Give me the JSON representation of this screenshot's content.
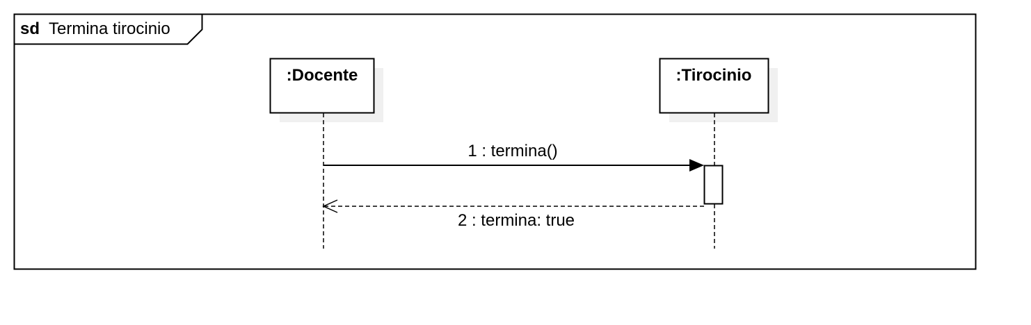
{
  "frame": {
    "keyword": "sd",
    "name": "Termina tirocinio"
  },
  "lifelines": [
    {
      "label": ":Docente"
    },
    {
      "label": ":Tirocinio"
    }
  ],
  "messages": [
    {
      "label": "1 : termina()",
      "type": "synchronous call",
      "from": ":Docente",
      "to": ":Tirocinio"
    },
    {
      "label": "2 : termina: true",
      "type": "return",
      "from": ":Tirocinio",
      "to": ":Docente"
    }
  ],
  "colors": {
    "stroke": "#000000",
    "background": "#ffffff",
    "shadow": "#f0f0f0"
  }
}
